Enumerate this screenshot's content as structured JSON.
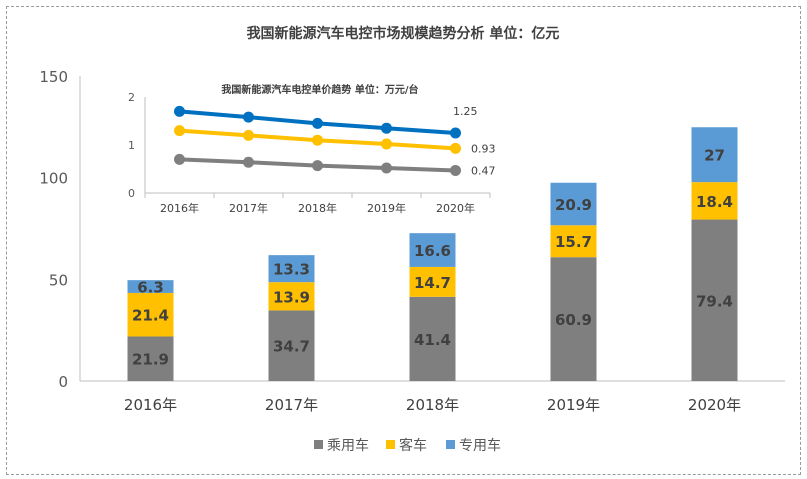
{
  "chart_data": [
    {
      "type": "bar",
      "stacked": true,
      "title": "我国新能源汽车电控市场规模趋势分析 单位：亿元",
      "categories": [
        "2016年",
        "2017年",
        "2018年",
        "2019年",
        "2020年"
      ],
      "series": [
        {
          "name": "乘用车",
          "values": [
            21.9,
            34.7,
            41.4,
            60.9,
            79.4
          ],
          "color": "#7f7f7f"
        },
        {
          "name": "客车",
          "values": [
            21.4,
            13.9,
            14.7,
            15.7,
            18.4
          ],
          "color": "#ffc000"
        },
        {
          "name": "专用车",
          "values": [
            6.3,
            13.3,
            16.6,
            20.9,
            27
          ],
          "color": "#5b9bd5"
        }
      ],
      "ylim": [
        0,
        150
      ],
      "yticks": [
        0,
        50,
        100,
        150
      ],
      "grid": false,
      "legend": "bottom"
    },
    {
      "type": "line",
      "title": "我国新能源汽车电控单价趋势 单位：万元/台",
      "categories": [
        "2016年",
        "2017年",
        "2018年",
        "2019年",
        "2020年"
      ],
      "series": [
        {
          "values": [
            1.7,
            1.58,
            1.45,
            1.35,
            1.25
          ],
          "color": "#0070c0",
          "end_label": "1.25"
        },
        {
          "values": [
            1.3,
            1.2,
            1.1,
            1.02,
            0.93
          ],
          "color": "#ffc000",
          "end_label": "0.93"
        },
        {
          "values": [
            0.7,
            0.64,
            0.57,
            0.52,
            0.47
          ],
          "color": "#7f7f7f",
          "end_label": "0.47"
        }
      ],
      "ylim": [
        0,
        2
      ],
      "yticks": [
        0,
        1,
        2
      ],
      "grid": false
    }
  ]
}
